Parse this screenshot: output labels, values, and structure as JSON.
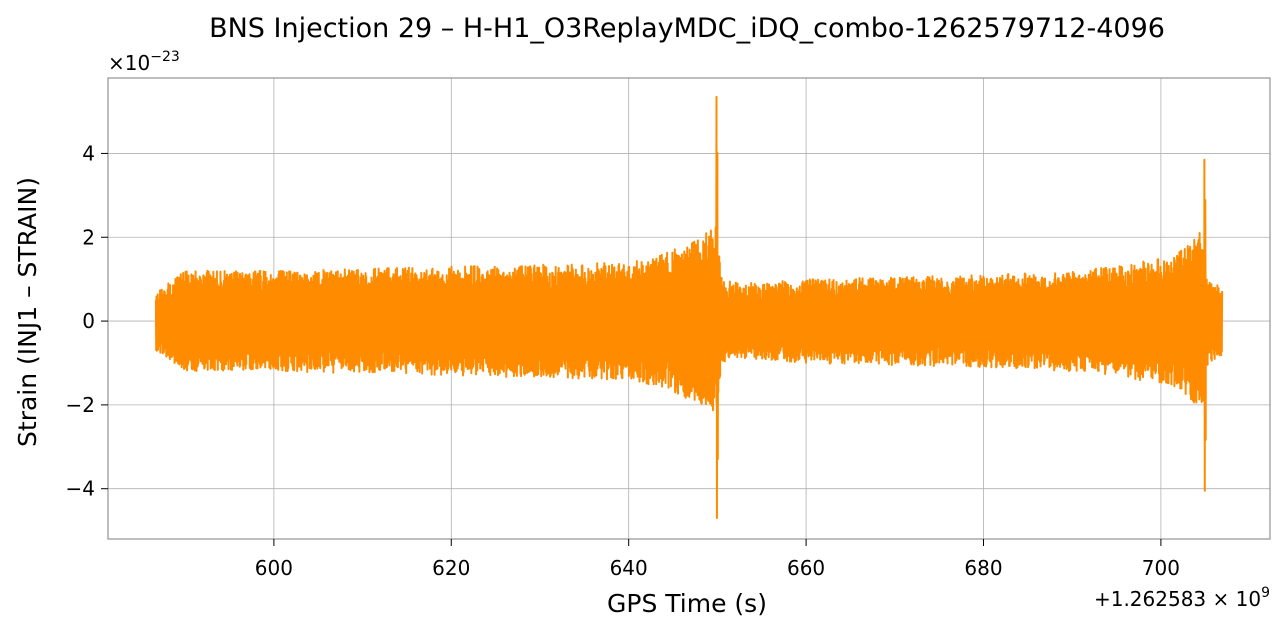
{
  "chart_data": {
    "type": "line",
    "title": "BNS Injection 29 – H-H1_O3ReplayMDC_iDQ_combo-1262579712-4096",
    "xlabel": "GPS Time (s)",
    "ylabel": "Strain (INJ1 – STRAIN)",
    "x_offset_label": "+1.262583 × 10^9",
    "x_offset_display": {
      "base": "+1.262583 × 10",
      "exp": "9"
    },
    "y_multiplier_label": "×10^-23",
    "y_multiplier_display": {
      "base": "×10",
      "exp": "−23"
    },
    "xlim": [
      581.3,
      712.3
    ],
    "ylim": [
      -5.2,
      5.8
    ],
    "x_ticks": [
      600,
      620,
      640,
      660,
      680,
      700
    ],
    "x_tick_labels": [
      "600",
      "620",
      "640",
      "660",
      "680",
      "700"
    ],
    "y_ticks": [
      -4,
      -2,
      0,
      2,
      4
    ],
    "y_tick_labels": [
      "−4",
      "−2",
      "0",
      "2",
      "4"
    ],
    "grid": true,
    "line_color": "#ff8c00",
    "series": [
      {
        "x_range": [
          586.7,
          706.9
        ],
        "envelope": {
          "x": [
            586.7,
            590,
            600,
            610,
            620,
            630,
            640,
            644,
            647,
            649,
            649.8,
            650.5,
            653,
            660,
            670,
            680,
            690,
            695,
            700,
            703,
            704.6,
            705.4,
            706.9
          ],
          "upper": [
            0.7,
            1.2,
            1.2,
            1.25,
            1.3,
            1.35,
            1.4,
            1.6,
            1.9,
            2.2,
            2.4,
            1.0,
            0.9,
            1.0,
            1.05,
            1.1,
            1.2,
            1.3,
            1.5,
            1.8,
            2.2,
            1.0,
            0.8
          ],
          "lower": [
            -0.7,
            -1.2,
            -1.2,
            -1.25,
            -1.3,
            -1.35,
            -1.4,
            -1.6,
            -1.9,
            -2.2,
            -2.4,
            -1.0,
            -0.9,
            -1.0,
            -1.05,
            -1.1,
            -1.2,
            -1.3,
            -1.5,
            -1.8,
            -2.2,
            -1.0,
            -0.8
          ]
        },
        "spikes": [
          {
            "x": 649.9,
            "max": 5.35,
            "min": -4.7
          },
          {
            "x": 704.9,
            "max": 3.85,
            "min": -4.05
          }
        ]
      }
    ]
  }
}
